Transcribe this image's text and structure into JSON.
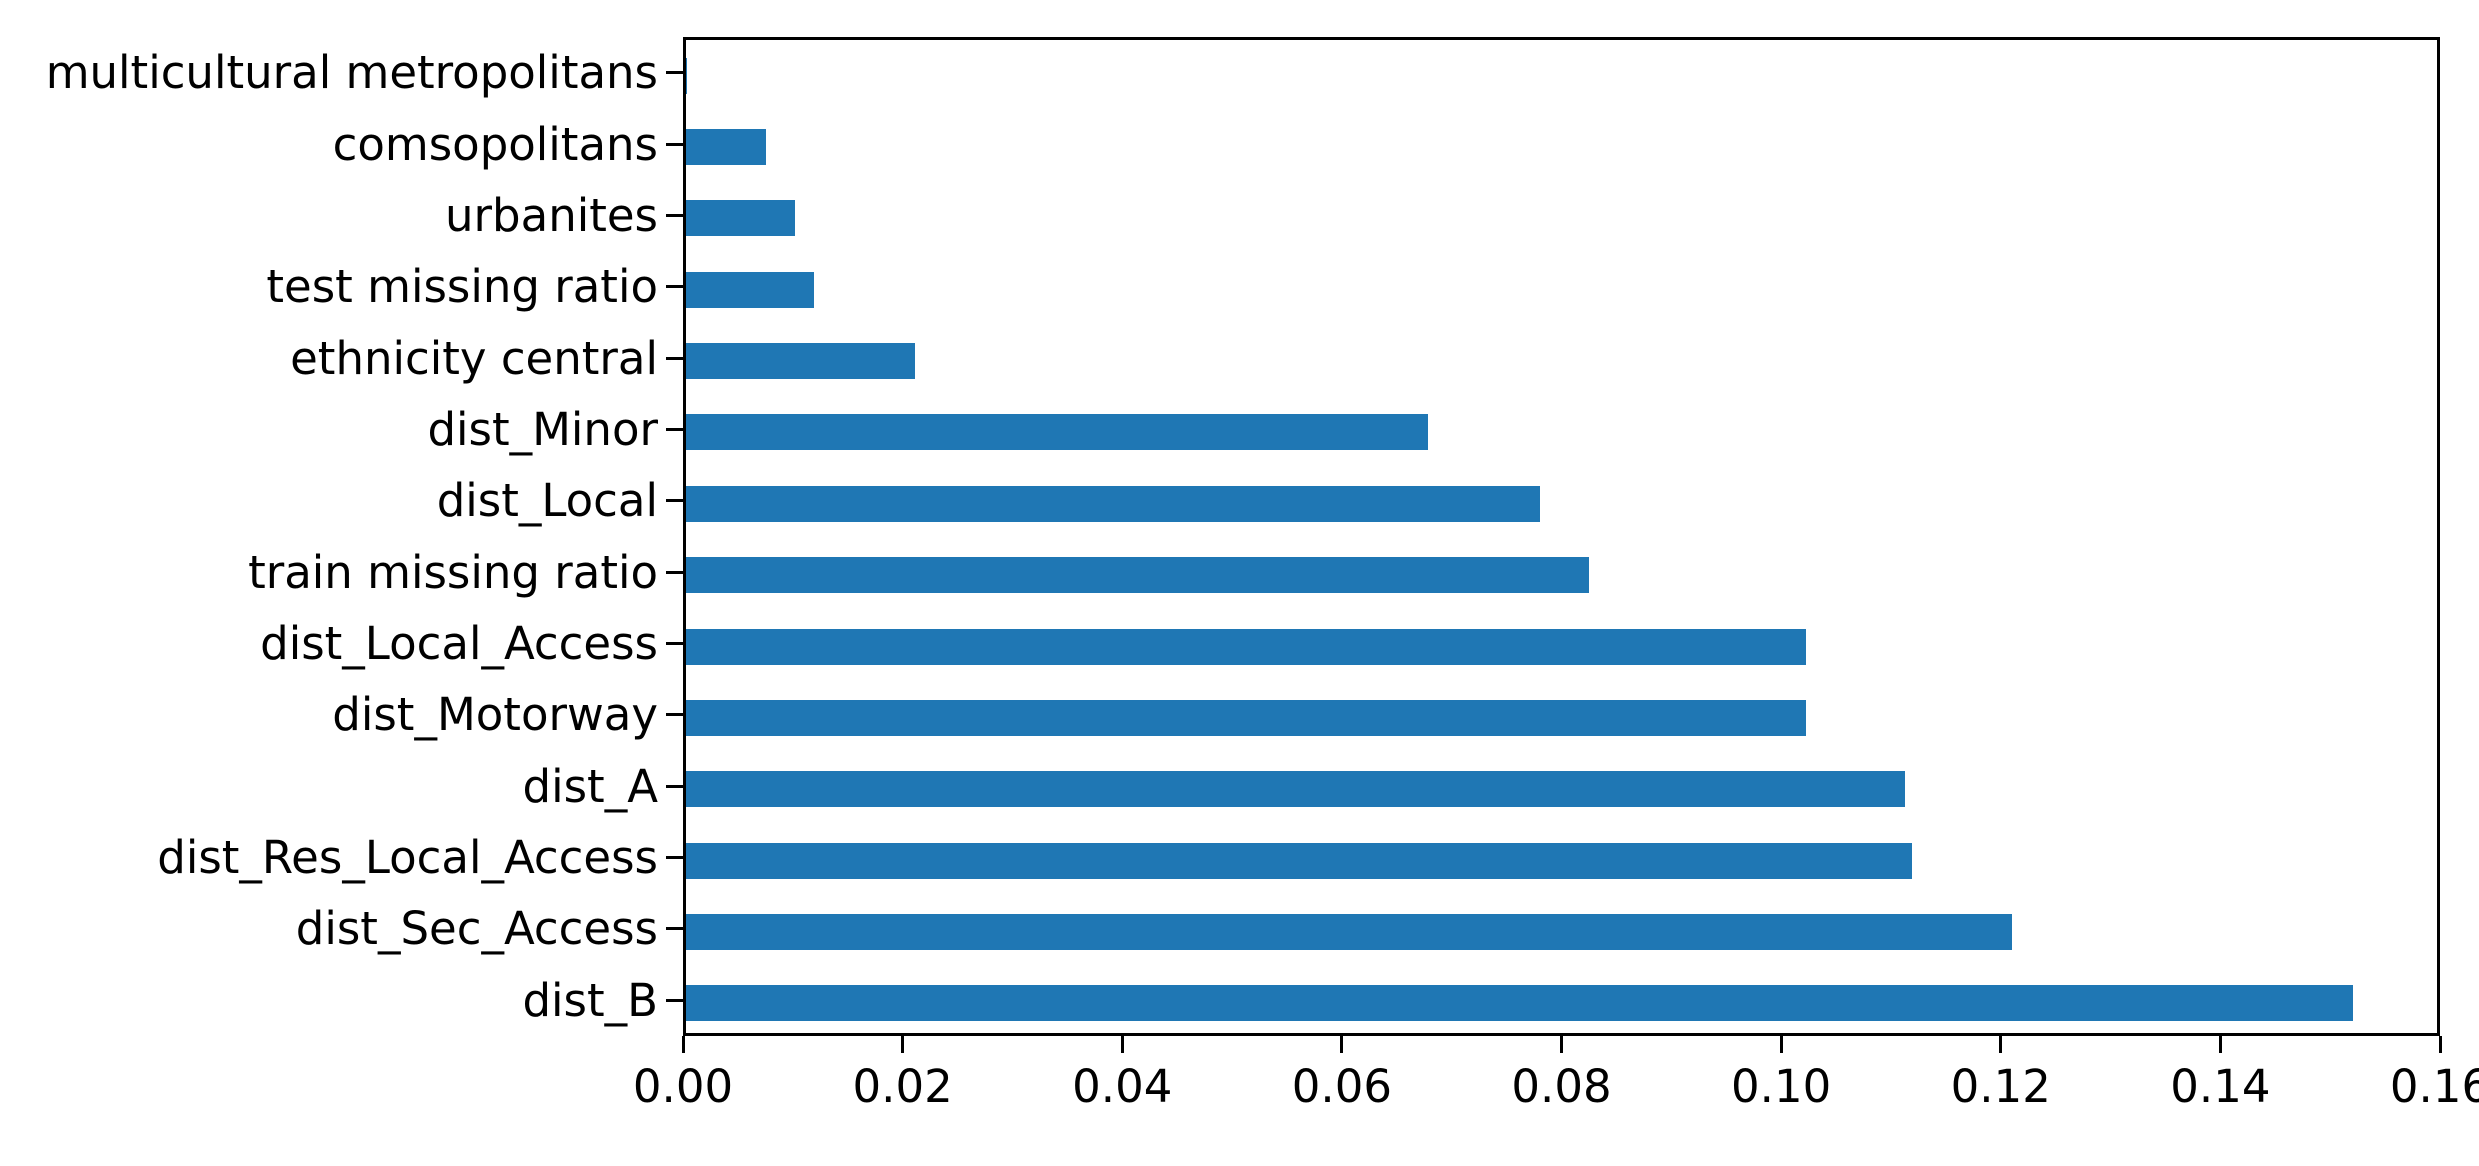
{
  "chart_data": {
    "type": "bar",
    "orientation": "horizontal",
    "title": "",
    "xlabel": "",
    "ylabel": "",
    "grid": false,
    "legend": null,
    "bar_color": "#1f77b4",
    "axis_color": "#000000",
    "xlim": [
      0,
      0.16
    ],
    "xtick_step": 0.02,
    "xtick_labels": [
      "0.00",
      "0.02",
      "0.04",
      "0.06",
      "0.08",
      "0.10",
      "0.12",
      "0.14",
      "0.16"
    ],
    "categories": [
      "multicultural metropolitans",
      "comsopolitans",
      "urbanites",
      "test missing ratio",
      "ethnicity central",
      "dist_Minor",
      "dist_Local",
      "train missing ratio",
      "dist_Local_Access",
      "dist_Motorway",
      "dist_A",
      "dist_Res_Local_Access",
      "dist_Sec_Access",
      "dist_B"
    ],
    "values": [
      0.0001,
      0.0073,
      0.01,
      0.0117,
      0.0209,
      0.0678,
      0.078,
      0.0825,
      0.1023,
      0.1023,
      0.1114,
      0.112,
      0.1212,
      0.1523
    ]
  }
}
